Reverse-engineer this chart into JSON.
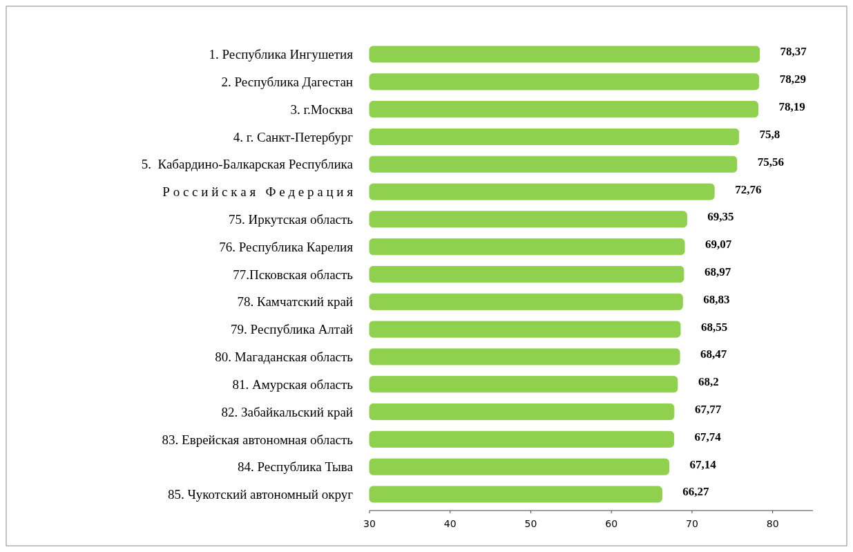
{
  "chart_data": {
    "type": "bar",
    "orientation": "horizontal",
    "categories": [
      "1. Республика Ингушетия",
      "2. Республика Дагестан",
      "3. г.Москва",
      "4. г. Санкт-Петербург",
      "5.  Кабардино-Балкарская Республика",
      "Р о с с и й с к а я   Ф е д е р а ц и я",
      "75. Иркутская область",
      "76. Республика Карелия",
      "77.Псковская область",
      "78. Камчатский край",
      "79. Республика Алтай",
      "80. Магаданская область",
      "81. Амурская область",
      "82. Забайкальский край",
      "83. Еврейская автономная область",
      "84. Республика Тыва",
      "85. Чукотский автономный округ"
    ],
    "values": [
      78.37,
      78.29,
      78.19,
      75.8,
      75.56,
      72.76,
      69.35,
      69.07,
      68.97,
      68.83,
      68.55,
      68.47,
      68.2,
      67.77,
      67.74,
      67.14,
      66.27
    ],
    "value_labels": [
      "78,37",
      "78,29",
      "78,19",
      "75,8",
      "75,56",
      "72,76",
      "69,35",
      "69,07",
      "68,97",
      "68,83",
      "68,55",
      "68,47",
      "68,2",
      "67,77",
      "67,74",
      "67,14",
      "66,27"
    ],
    "color": "#8fd14f",
    "xlim": [
      30,
      85
    ],
    "xticks": [
      30,
      40,
      50,
      60,
      70,
      80
    ],
    "grid": false
  }
}
